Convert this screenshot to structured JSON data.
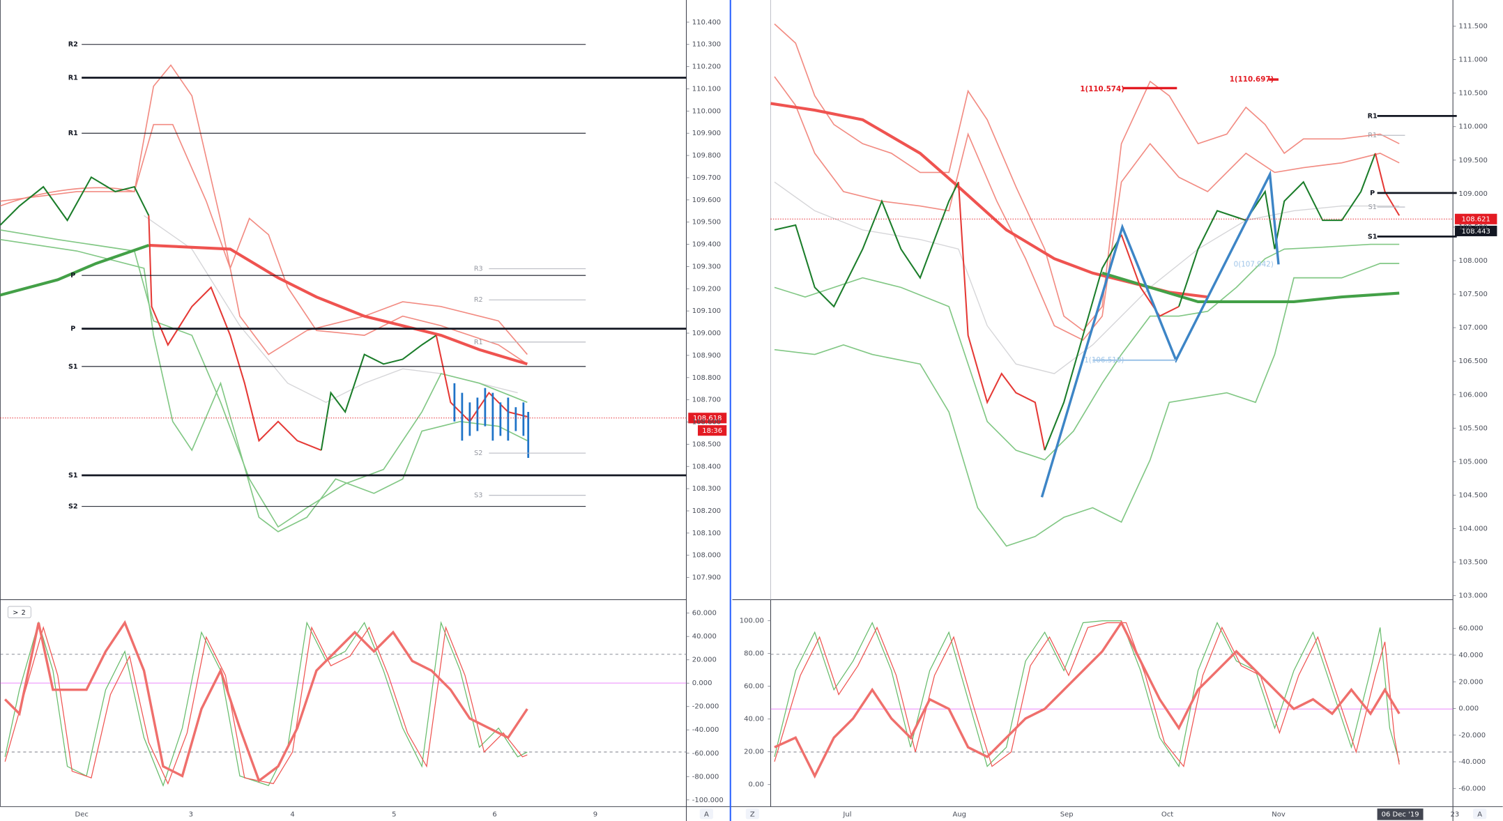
{
  "left_chart": {
    "ylim": [
      107.8,
      110.5
    ],
    "yticks": [
      {
        "value": 107.9,
        "label": "107.900"
      },
      {
        "value": 108.0,
        "label": "108.000"
      },
      {
        "value": 108.1,
        "label": "108.100"
      },
      {
        "value": 108.2,
        "label": "108.200"
      },
      {
        "value": 108.3,
        "label": "108.300"
      },
      {
        "value": 108.4,
        "label": "108.400"
      },
      {
        "value": 108.5,
        "label": "108.500"
      },
      {
        "value": 108.6,
        "label": "108.600"
      },
      {
        "value": 108.7,
        "label": "108.700"
      },
      {
        "value": 108.8,
        "label": "108.800"
      },
      {
        "value": 108.9,
        "label": "108.900"
      },
      {
        "value": 109.0,
        "label": "109.000"
      },
      {
        "value": 109.1,
        "label": "109.100"
      },
      {
        "value": 109.2,
        "label": "109.200"
      },
      {
        "value": 109.3,
        "label": "109.300"
      },
      {
        "value": 109.4,
        "label": "109.400"
      },
      {
        "value": 109.5,
        "label": "109.500"
      },
      {
        "value": 109.6,
        "label": "109.600"
      },
      {
        "value": 109.7,
        "label": "109.700"
      },
      {
        "value": 109.8,
        "label": "109.800"
      },
      {
        "value": 109.9,
        "label": "109.900"
      },
      {
        "value": 110.0,
        "label": "110.000"
      },
      {
        "value": 110.1,
        "label": "110.100"
      },
      {
        "value": 110.2,
        "label": "110.200"
      },
      {
        "value": 110.3,
        "label": "110.300"
      },
      {
        "value": 110.4,
        "label": "110.400"
      }
    ],
    "pivots": [
      {
        "label": "R2",
        "value": 110.3,
        "style": "thin"
      },
      {
        "label": "R1",
        "value": 110.15,
        "style": "thick"
      },
      {
        "label": "R1",
        "value": 109.9,
        "style": "thin"
      },
      {
        "label": "P",
        "value": 109.26,
        "style": "thin"
      },
      {
        "label": "P",
        "value": 109.02,
        "style": "thick"
      },
      {
        "label": "S1",
        "value": 108.85,
        "style": "thin"
      },
      {
        "label": "S1",
        "value": 108.36,
        "style": "thick"
      },
      {
        "label": "S2",
        "value": 108.22,
        "style": "thin"
      },
      {
        "label": "R3",
        "value": 109.29,
        "style": "faint"
      },
      {
        "label": "R2",
        "value": 109.15,
        "style": "faint"
      },
      {
        "label": "R1",
        "value": 108.96,
        "style": "faint"
      },
      {
        "label": "S2",
        "value": 108.46,
        "style": "faint"
      },
      {
        "label": "S3",
        "value": 108.27,
        "style": "faint"
      }
    ],
    "last_price": 108.618,
    "timer": "18:36",
    "x_labels": [
      "Dec",
      "3",
      "4",
      "5",
      "6",
      "9"
    ],
    "indicator_label": "2",
    "osc_ylim": [
      -104.1,
      68.2
    ],
    "osc_yticks": [
      {
        "value": 60,
        "label": "60.000"
      },
      {
        "value": 40,
        "label": "40.000"
      },
      {
        "value": 20,
        "label": "20.000"
      },
      {
        "value": 0,
        "label": "0.000"
      },
      {
        "value": -20,
        "label": "-20.000"
      },
      {
        "value": -40,
        "label": "-40.000"
      },
      {
        "value": -60,
        "label": "-60.000"
      },
      {
        "value": -80,
        "label": "-80.000"
      },
      {
        "value": -100,
        "label": "-100.000"
      }
    ],
    "corner_label": "A"
  },
  "right_chart": {
    "ylim": [
      102.94,
      111.89
    ],
    "yticks": [
      {
        "value": 103.0,
        "label": "103.000"
      },
      {
        "value": 103.5,
        "label": "103.500"
      },
      {
        "value": 104.0,
        "label": "104.000"
      },
      {
        "value": 104.5,
        "label": "104.500"
      },
      {
        "value": 105.0,
        "label": "105.000"
      },
      {
        "value": 105.5,
        "label": "105.500"
      },
      {
        "value": 106.0,
        "label": "106.000"
      },
      {
        "value": 106.5,
        "label": "106.500"
      },
      {
        "value": 107.0,
        "label": "107.000"
      },
      {
        "value": 107.5,
        "label": "107.500"
      },
      {
        "value": 108.0,
        "label": "108.000"
      },
      {
        "value": 108.5,
        "label": "108.500"
      },
      {
        "value": 109.0,
        "label": "109.000"
      },
      {
        "value": 109.5,
        "label": "109.500"
      },
      {
        "value": 110.0,
        "label": "110.000"
      },
      {
        "value": 110.5,
        "label": "110.500"
      },
      {
        "value": 111.0,
        "label": "111.000"
      },
      {
        "value": 111.5,
        "label": "111.500"
      }
    ],
    "pivots": [
      {
        "label": "R1",
        "value": 110.16,
        "style": "thick"
      },
      {
        "label": "R1",
        "value": 109.87,
        "style": "faint"
      },
      {
        "label": "P",
        "value": 109.01,
        "style": "thick"
      },
      {
        "label": "S1",
        "value": 108.8,
        "style": "faint"
      },
      {
        "label": "S1",
        "value": 108.36,
        "style": "thick"
      }
    ],
    "last_price": 108.621,
    "second_price": 108.443,
    "annotations": [
      "1(110.574)",
      "1(110.697)",
      "0(107.942)",
      "1(106.510)"
    ],
    "x_labels": [
      "Jul",
      "Aug",
      "Sep",
      "Oct",
      "Nov",
      "06 Dec '19",
      "23"
    ],
    "osc_left_ylim": [
      -12.3,
      110.5
    ],
    "osc_left_yticks": [
      {
        "value": 0,
        "label": "0.00"
      },
      {
        "value": 20,
        "label": "20.00"
      },
      {
        "value": 40,
        "label": "40.00"
      },
      {
        "value": 60,
        "label": "60.00"
      },
      {
        "value": 80,
        "label": "80.00"
      },
      {
        "value": 100,
        "label": "100.00"
      }
    ],
    "osc_right_ylim": [
      -72.2,
      78.7
    ],
    "osc_right_yticks": [
      {
        "value": 60,
        "label": "60.000"
      },
      {
        "value": 40,
        "label": "40.000"
      },
      {
        "value": 20,
        "label": "20.000"
      },
      {
        "value": 0,
        "label": "0.000"
      },
      {
        "value": -20,
        "label": "-20.000"
      },
      {
        "value": -40,
        "label": "-40.000"
      },
      {
        "value": -60,
        "label": "-60.000"
      }
    ],
    "corner_left": "Z",
    "corner_right": "A"
  }
}
